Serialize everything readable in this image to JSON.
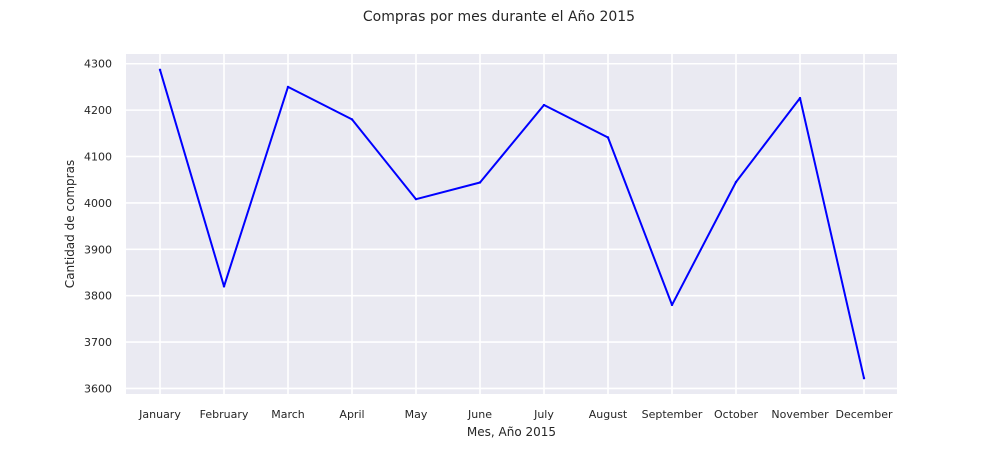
{
  "chart_data": {
    "type": "line",
    "title": "Compras por mes durante el Año 2015",
    "xlabel": "Mes, Año 2015",
    "ylabel": "Cantidad de compras",
    "categories": [
      "January",
      "February",
      "March",
      "April",
      "May",
      "June",
      "July",
      "August",
      "September",
      "October",
      "November",
      "December"
    ],
    "series": [
      {
        "values": [
          4287,
          3820,
          4250,
          4180,
          4008,
          4044,
          4211,
          4141,
          3780,
          4045,
          4226,
          3622
        ]
      }
    ],
    "yticks": [
      3600,
      3700,
      3800,
      3900,
      4000,
      4100,
      4200,
      4300
    ],
    "ylim": [
      3588,
      4321
    ],
    "grid": true,
    "legend": "none",
    "colors": {
      "background": "#eaeaf2",
      "grid": "#ffffff",
      "line": "#0000ff"
    }
  }
}
